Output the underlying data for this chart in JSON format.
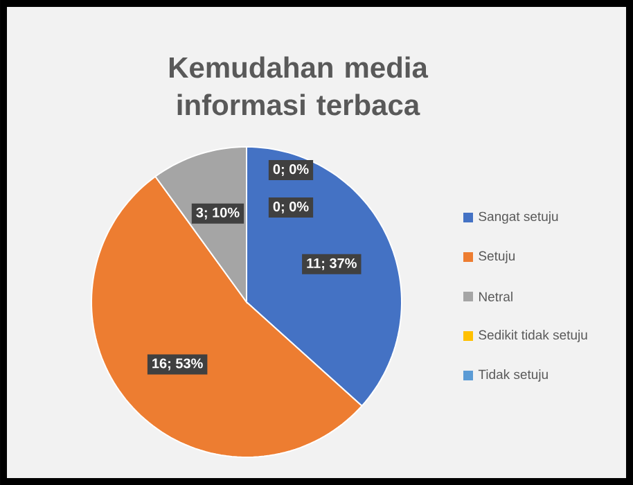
{
  "chart_data": {
    "type": "pie",
    "title": "Kemudahan media informasi terbaca",
    "categories": [
      "Sangat setuju",
      "Setuju",
      "Netral",
      "Sedikit tidak setuju",
      "Tidak setuju"
    ],
    "values": [
      11,
      16,
      3,
      0,
      0
    ],
    "colors": [
      "#4472c4",
      "#ed7d31",
      "#a5a5a5",
      "#ffc000",
      "#5b9bd5"
    ],
    "value_labels": [
      "11; 37%",
      "16; 53%",
      "3; 10%",
      "0; 0%",
      "0; 0%"
    ],
    "legend": "right"
  }
}
